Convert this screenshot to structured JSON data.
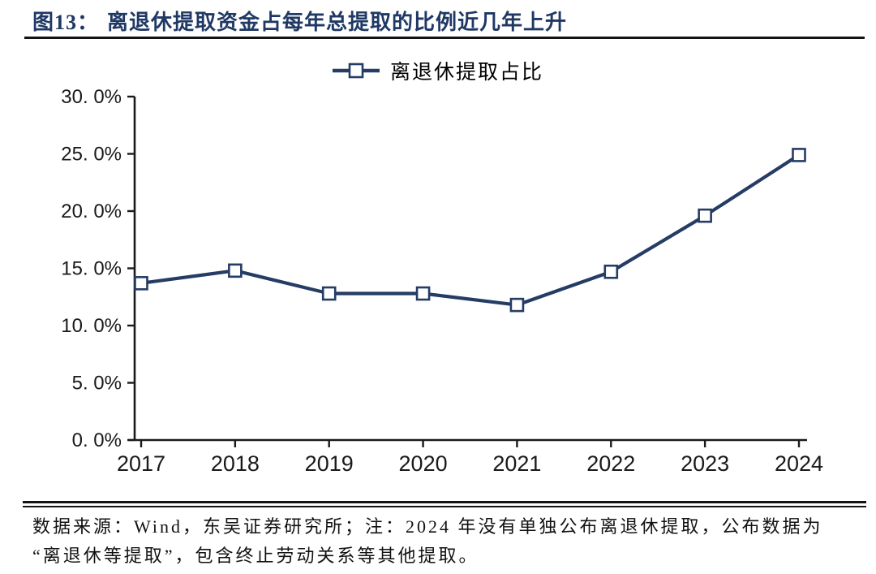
{
  "header": {
    "figure_label": "图13：",
    "title": "离退休提取资金占每年总提取的比例近几年上升"
  },
  "legend": {
    "label": "离退休提取占比"
  },
  "footer": {
    "line1": "数据来源：Wind，东吴证券研究所；注：2024 年没有单独公布离退休提取，公布数据为",
    "line2": "“离退休等提取”，包含终止劳动关系等其他提取。"
  },
  "colors": {
    "title": "#1F3864",
    "series_line": "#253C64",
    "marker_fill": "#FFFFFF",
    "axis": "#1A1A1A",
    "rule": "#141414",
    "text": "#000000"
  },
  "chart_data": {
    "type": "line",
    "title": "离退休提取资金占每年总提取的比例近几年上升",
    "categories": [
      "2017",
      "2018",
      "2019",
      "2020",
      "2021",
      "2022",
      "2023",
      "2024"
    ],
    "series": [
      {
        "name": "离退休提取占比",
        "values": [
          13.7,
          14.8,
          12.8,
          12.8,
          11.8,
          14.7,
          19.6,
          24.9
        ]
      }
    ],
    "ylim": [
      0,
      30
    ],
    "ytick_step": 5,
    "ytick_labels": [
      "0. 0%",
      "5. 0%",
      "10. 0%",
      "15. 0%",
      "20. 0%",
      "25. 0%",
      "30. 0%"
    ],
    "xlabel": "",
    "ylabel": "",
    "grid": false,
    "legend_position": "top",
    "marker": "hollow-square"
  }
}
